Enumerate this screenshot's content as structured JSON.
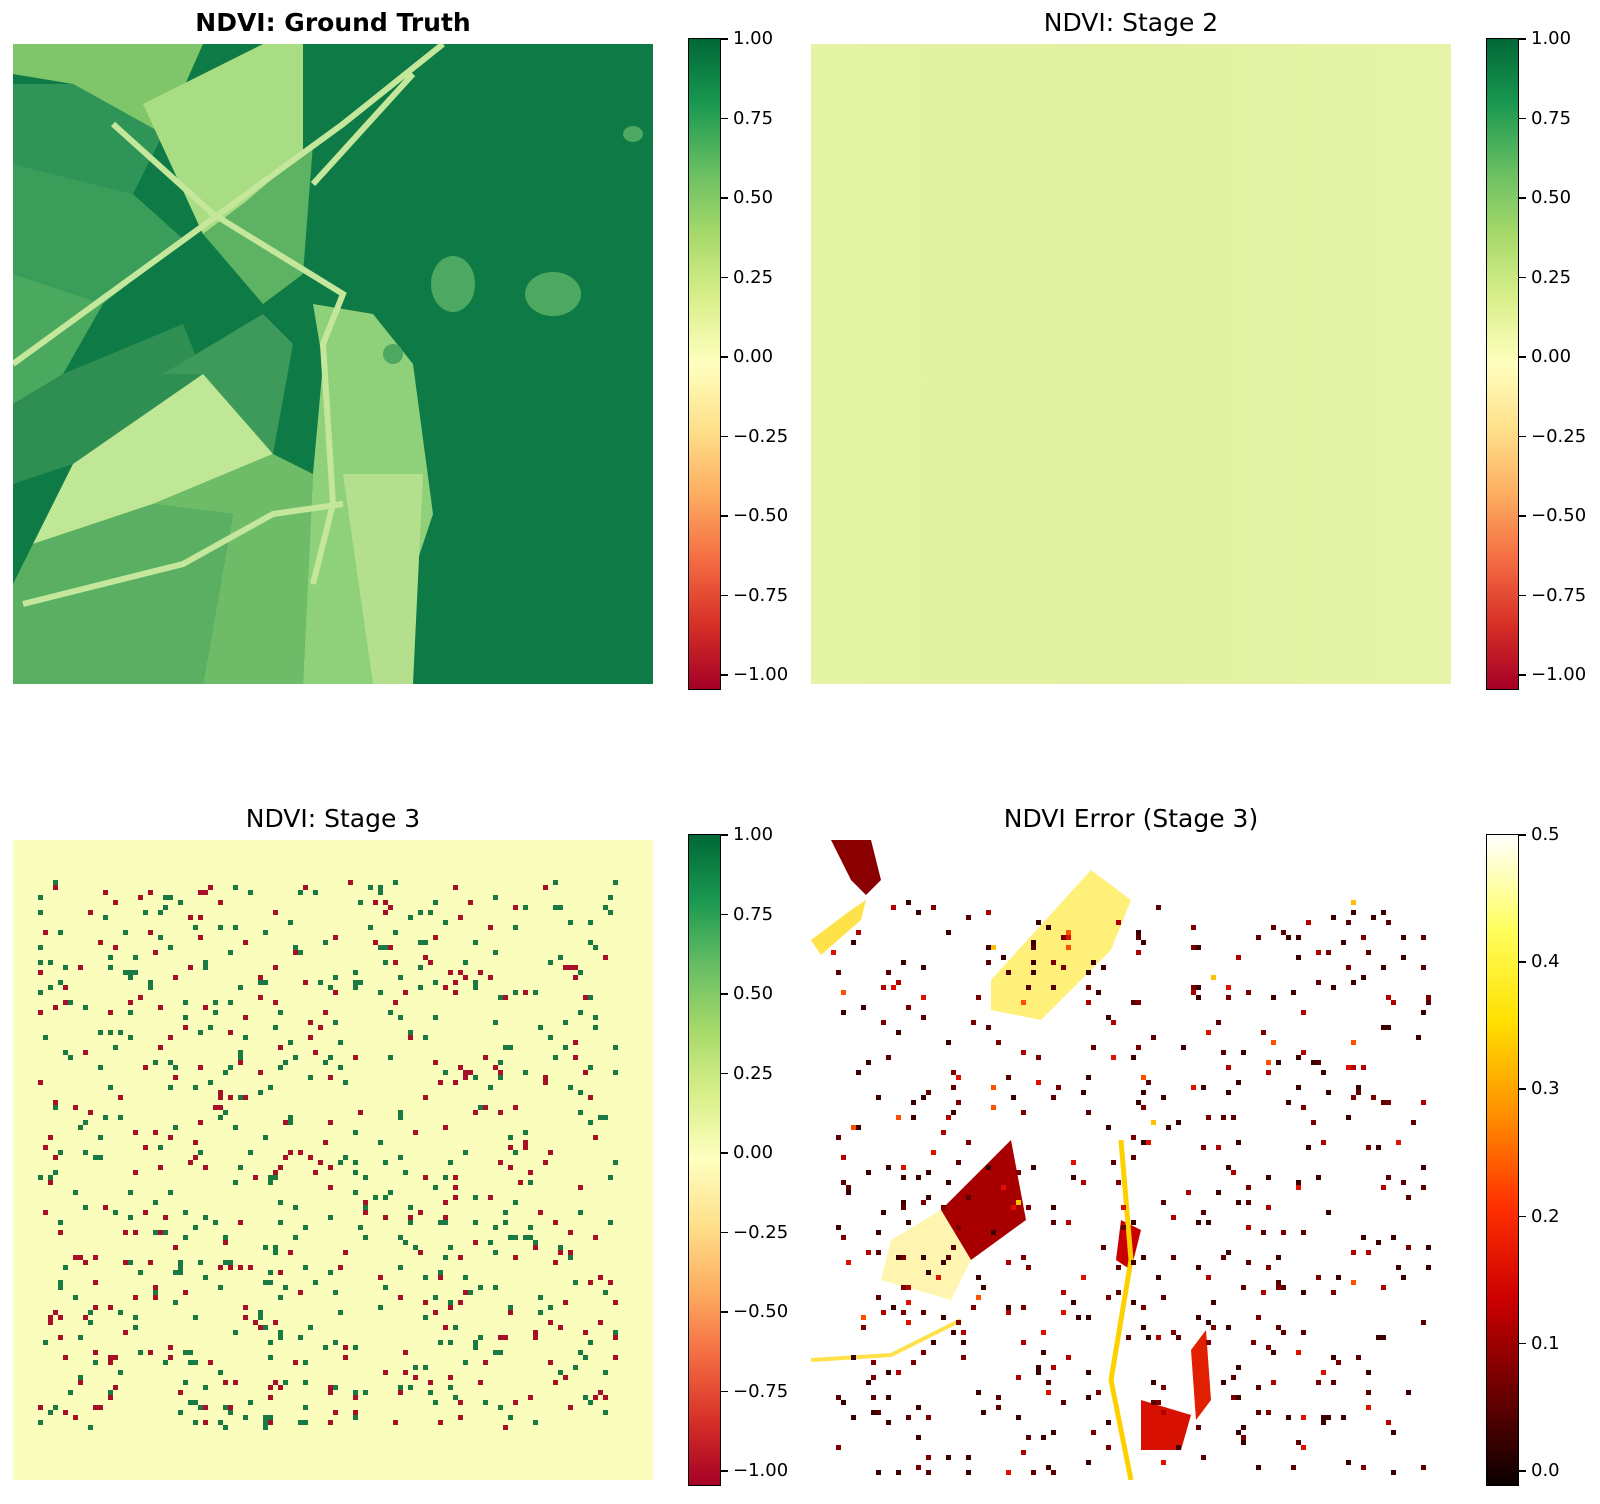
{
  "panels": [
    {
      "id": "ground_truth",
      "title": "NDVI: Ground Truth",
      "title_bold": true,
      "colormap": "RdYlGn",
      "colorbar_ticks": [
        "1.00",
        "0.75",
        "0.50",
        "0.25",
        "0.00",
        "−0.25",
        "−0.50",
        "−0.75",
        "−1.00"
      ]
    },
    {
      "id": "stage2",
      "title": "NDVI: Stage 2",
      "title_bold": false,
      "colormap": "RdYlGn",
      "colorbar_ticks": [
        "1.00",
        "0.75",
        "0.50",
        "0.25",
        "0.00",
        "−0.25",
        "−0.50",
        "−0.75",
        "−1.00"
      ]
    },
    {
      "id": "stage3",
      "title": "NDVI: Stage 3",
      "title_bold": false,
      "colormap": "RdYlGn",
      "colorbar_ticks": [
        "1.00",
        "0.75",
        "0.50",
        "0.25",
        "0.00",
        "−0.25",
        "−0.50",
        "−0.75",
        "−1.00"
      ]
    },
    {
      "id": "error",
      "title": "NDVI Error (Stage 3)",
      "title_bold": false,
      "colormap": "hot",
      "colorbar_ticks": [
        "0.5",
        "0.4",
        "0.3",
        "0.2",
        "0.1",
        "0.0"
      ]
    }
  ],
  "chart_data": [
    {
      "type": "heatmap",
      "title": "NDVI: Ground Truth",
      "colormap": "RdYlGn",
      "clim": [
        -1.0,
        1.0
      ],
      "description_values": {
        "dense_vegetation": 0.9,
        "crop_fields": 0.45,
        "roads_and_bare": 0.3
      }
    },
    {
      "type": "heatmap",
      "title": "NDVI: Stage 2",
      "colormap": "RdYlGn",
      "clim": [
        -1.0,
        1.0
      ],
      "uniform_value": 0.18
    },
    {
      "type": "heatmap",
      "title": "NDVI: Stage 3",
      "colormap": "RdYlGn",
      "clim": [
        -1.0,
        1.0
      ],
      "background_value": 0.08,
      "sparse_pixel_values": [
        0.9,
        -0.9
      ]
    },
    {
      "type": "heatmap",
      "title": "NDVI Error (Stage 3)",
      "colormap": "hot",
      "clim": [
        0.0,
        0.5
      ],
      "background_value": 0.5
    }
  ],
  "colors": {
    "rdylgn": [
      "#a50026",
      "#d73027",
      "#f46d43",
      "#fdae61",
      "#fee08b",
      "#ffffbf",
      "#d9ef8b",
      "#a6d96a",
      "#66bd63",
      "#1a9850",
      "#006837"
    ],
    "hot": [
      "#0b0000",
      "#6b0000",
      "#cc0000",
      "#ff3000",
      "#ff9000",
      "#ffe000",
      "#ffff60",
      "#ffffff"
    ],
    "dense_green": "#0e7a45",
    "field_light": "#8fcf70",
    "stage2_fill": "#e3f2a2",
    "stage3_bg": "#fbfdbc",
    "red_pixel": "#a8102a",
    "green_pixel": "#1a7a44"
  }
}
